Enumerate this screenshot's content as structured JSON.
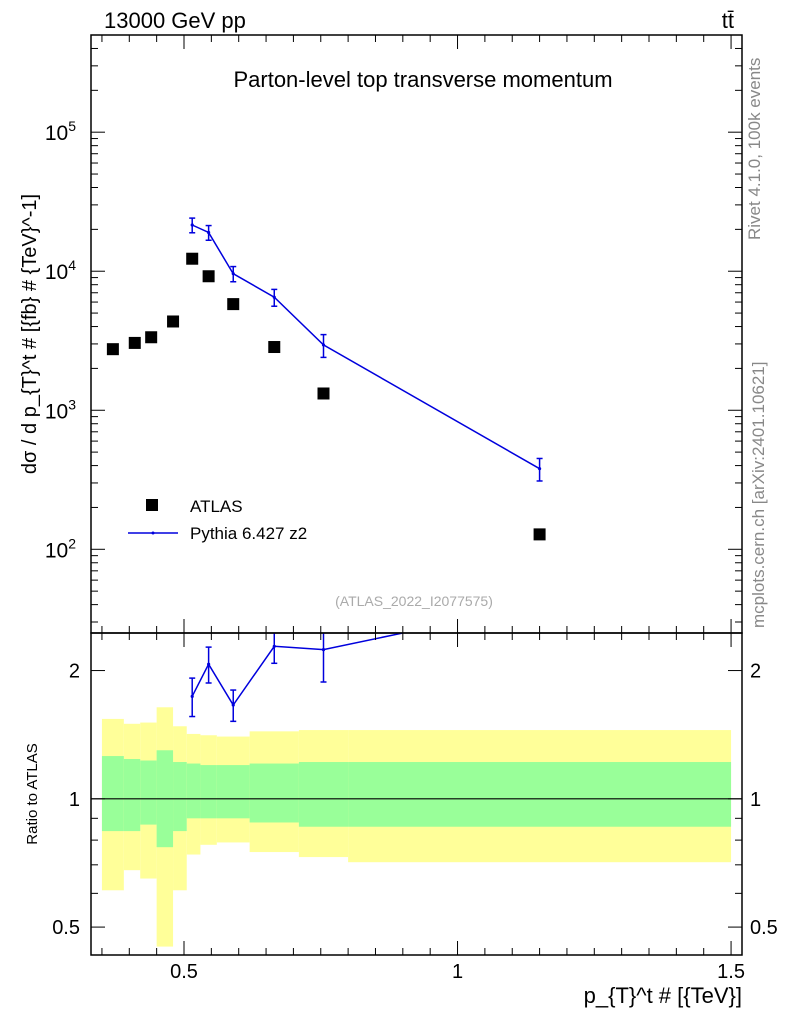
{
  "header": {
    "beam": "13000 GeV pp",
    "process": "tt̄",
    "side_label_rivet": "Rivet 4.1.0,  100k events",
    "side_label_site": "mcplots.cern.ch [arXiv:2401.10621]"
  },
  "chart_data": [
    {
      "type": "scatter",
      "panel": "main",
      "title": "Parton-level top transverse momentum",
      "ylabel": "dσ / d p_{T}^t # [{fb} # {TeV}^-1]",
      "yscale": "log",
      "ylim": [
        25,
        500000
      ],
      "xlim": [
        0.33,
        1.52
      ],
      "analysis_id": "(ATLAS_2022_I2077575)",
      "y_tick_labels": [
        "10^2",
        "10^3",
        "10^4",
        "10^5"
      ],
      "legend": [
        "ATLAS",
        "Pythia 6.427 z2"
      ],
      "legend_position": "bottom-left",
      "series": [
        {
          "name": "ATLAS",
          "marker": "square",
          "color": "#000000",
          "x": [
            0.37,
            0.41,
            0.44,
            0.48,
            0.515,
            0.545,
            0.59,
            0.665,
            0.755,
            1.15
          ],
          "y": [
            2750,
            3050,
            3350,
            4350,
            12300,
            9200,
            5800,
            2850,
            1320,
            128
          ]
        },
        {
          "name": "Pythia 6.427 z2",
          "marker": "line",
          "color": "#0000dd",
          "x": [
            0.515,
            0.545,
            0.59,
            0.665,
            0.755,
            1.15
          ],
          "y": [
            21500,
            19000,
            9600,
            6500,
            2950,
            380
          ],
          "yerr_low": [
            2600,
            2300,
            1200,
            900,
            550,
            70
          ],
          "yerr_high": [
            2600,
            2300,
            1200,
            900,
            550,
            70
          ]
        }
      ]
    },
    {
      "type": "area",
      "panel": "ratio",
      "ylabel": "Ratio to ATLAS",
      "xlabel": "p_{T}^t # [{TeV}]",
      "yscale": "log",
      "ylim": [
        0.43,
        2.45
      ],
      "xlim": [
        0.33,
        1.52
      ],
      "x_ticks": [
        0.5,
        1,
        1.5
      ],
      "x_tick_labels": [
        "0.5",
        "1",
        "1.5"
      ],
      "y_ticks": [
        0.5,
        1,
        2
      ],
      "y_tick_labels": [
        "0.5",
        "1",
        "2"
      ],
      "band_edges": [
        0.35,
        0.39,
        0.42,
        0.45,
        0.48,
        0.505,
        0.53,
        0.56,
        0.62,
        0.71,
        0.8,
        1.5
      ],
      "bands": [
        {
          "name": "total uncertainty",
          "color": "#ffff99",
          "low": [
            0.61,
            0.68,
            0.65,
            0.45,
            0.61,
            0.74,
            0.78,
            0.79,
            0.75,
            0.73,
            0.71
          ],
          "high": [
            1.54,
            1.5,
            1.51,
            1.64,
            1.48,
            1.42,
            1.41,
            1.4,
            1.44,
            1.45,
            1.45
          ]
        },
        {
          "name": "statistical uncertainty",
          "color": "#99ff99",
          "low": [
            0.84,
            0.84,
            0.87,
            0.77,
            0.84,
            0.9,
            0.9,
            0.9,
            0.88,
            0.86,
            0.86
          ],
          "high": [
            1.26,
            1.24,
            1.23,
            1.3,
            1.22,
            1.21,
            1.2,
            1.2,
            1.21,
            1.22,
            1.22
          ]
        }
      ],
      "series": [
        {
          "name": "Pythia 6.427 z2 / ATLAS",
          "color": "#0000dd",
          "x": [
            0.515,
            0.545,
            0.59,
            0.665,
            0.755,
            0.9
          ],
          "y": [
            1.74,
            2.07,
            1.66,
            2.28,
            2.24,
            2.45
          ],
          "yerr_low": [
            0.18,
            0.2,
            0.14,
            0.2,
            0.36,
            0
          ],
          "yerr_high": [
            0.18,
            0.2,
            0.14,
            0.2,
            0.36,
            0
          ]
        }
      ]
    }
  ]
}
